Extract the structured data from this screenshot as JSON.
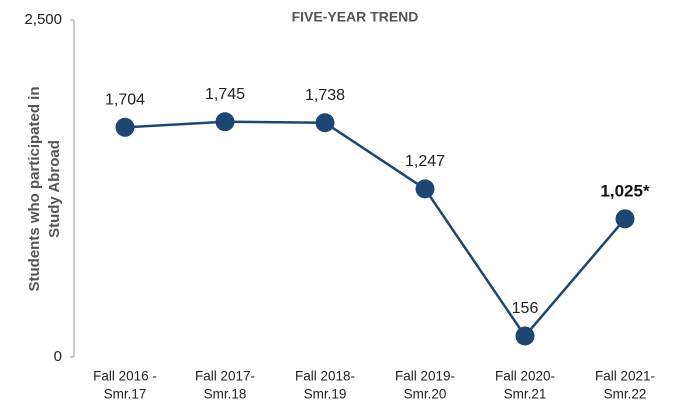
{
  "chart_data": {
    "type": "line",
    "title": "FIVE-YEAR TREND",
    "ylabel": [
      "Students who participated in",
      "Study Abroad"
    ],
    "categories": [
      [
        "Fall 2016 -",
        "Smr.17"
      ],
      [
        "Fall 2017-",
        "Smr.18"
      ],
      [
        "Fall 2018-",
        "Smr.19"
      ],
      [
        "Fall 2019-",
        "Smr.20"
      ],
      [
        "Fall 2020-",
        "Smr.21"
      ],
      [
        "Fall 2021-",
        "Smr.22"
      ]
    ],
    "series": [
      {
        "name": "Students",
        "color": "#1d4673",
        "values": [
          1704,
          1745,
          1738,
          1247,
          156,
          1025
        ]
      }
    ],
    "value_labels": [
      "1,704",
      "1,745",
      "1,738",
      "1,247",
      "156",
      "1,025*"
    ],
    "ylim": [
      0,
      2500
    ],
    "yticks": [
      0,
      {
        "value": 2500,
        "label": "2,500"
      }
    ],
    "grid": false
  }
}
